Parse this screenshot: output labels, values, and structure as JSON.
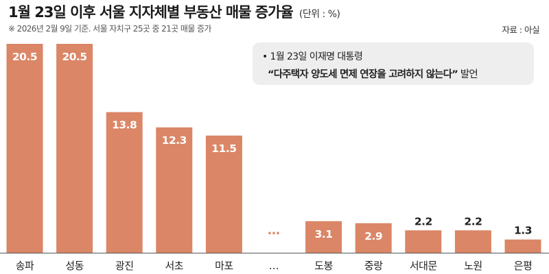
{
  "header": {
    "title": "1월 23일 이후 서울 지자체별 부동산 매물 증가율",
    "unit": "(단위 : %)",
    "note": "※ 2026년 2월 9일 기준. 서울 자치구 25곳 중 21곳 매물 증가",
    "source": "자료 : 아실"
  },
  "callout": {
    "line1": "• 1월 23일 이재명 대통령",
    "quote": "“다주택자 양도세 면제 연장을 고려하지 않는다”",
    "suffix": " 발언"
  },
  "colors": {
    "bar": "#db8666",
    "bar_value_text": "#ffffff",
    "outside_value_text": "#222222",
    "baseline": "#555555",
    "ellipsis": "#db8666"
  },
  "chart_data": {
    "type": "bar",
    "categories": [
      "송파",
      "성동",
      "광진",
      "서초",
      "마포",
      "…",
      "도봉",
      "중랑",
      "서대문",
      "노원",
      "은평"
    ],
    "values": [
      20.5,
      20.5,
      13.8,
      12.3,
      11.5,
      null,
      3.1,
      2.9,
      2.2,
      2.2,
      1.3
    ],
    "data_labels": [
      "20.5",
      "20.5",
      "13.8",
      "12.3",
      "11.5",
      "…",
      "3.1",
      "2.9",
      "2.2",
      "2.2",
      "1.3"
    ],
    "title": "1월 23일 이후 서울 지자체별 부동산 매물 증가율",
    "xlabel": "",
    "ylabel": "",
    "ylim": [
      0,
      20.5
    ],
    "grid": false,
    "legend": "none"
  }
}
